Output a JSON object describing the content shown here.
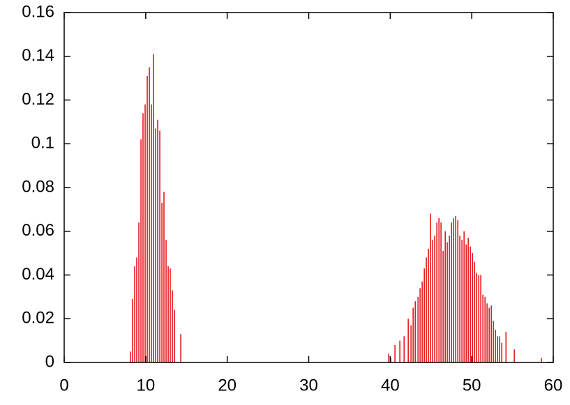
{
  "chart_data": {
    "type": "impulse",
    "color": "#e41a1c",
    "grid": false,
    "xlim": [
      0,
      60
    ],
    "xticks": [
      0,
      10,
      20,
      30,
      40,
      50,
      60
    ],
    "ylim": [
      0,
      0.16
    ],
    "yticks": [
      0,
      0.02,
      0.04,
      0.06,
      0.08,
      0.1,
      0.12,
      0.14,
      0.16
    ],
    "x": [
      8.13,
      8.39,
      8.65,
      8.9,
      9.16,
      9.42,
      9.67,
      9.93,
      10.19,
      10.45,
      10.7,
      10.96,
      11.22,
      11.47,
      11.73,
      11.99,
      12.24,
      12.5,
      12.76,
      13.01,
      13.27,
      13.53,
      14.3,
      39.81,
      40.07,
      40.58,
      41.18,
      41.7,
      42.21,
      42.55,
      42.81,
      43.07,
      43.41,
      43.66,
      43.92,
      44.18,
      44.43,
      44.69,
      44.95,
      45.21,
      45.46,
      45.72,
      45.98,
      46.23,
      46.49,
      46.75,
      47.0,
      47.26,
      47.52,
      47.77,
      48.03,
      48.29,
      48.54,
      48.8,
      49.06,
      49.32,
      49.57,
      49.83,
      50.09,
      50.34,
      50.6,
      50.86,
      51.11,
      51.37,
      51.63,
      51.88,
      52.14,
      52.4,
      52.65,
      52.91,
      53.17,
      53.42,
      53.68,
      54.2,
      55.22,
      58.56
    ],
    "values": [
      0.005,
      0.029,
      0.044,
      0.048,
      0.064,
      0.102,
      0.114,
      0.118,
      0.131,
      0.135,
      0.118,
      0.141,
      0.107,
      0.111,
      0.106,
      0.073,
      0.078,
      0.056,
      0.044,
      0.043,
      0.033,
      0.024,
      0.013,
      0.004,
      0.002,
      0.008,
      0.01,
      0.012,
      0.02,
      0.017,
      0.025,
      0.028,
      0.03,
      0.034,
      0.037,
      0.043,
      0.048,
      0.052,
      0.068,
      0.056,
      0.058,
      0.064,
      0.066,
      0.064,
      0.051,
      0.06,
      0.055,
      0.058,
      0.064,
      0.066,
      0.067,
      0.065,
      0.058,
      0.056,
      0.06,
      0.054,
      0.057,
      0.053,
      0.05,
      0.046,
      0.041,
      0.04,
      0.04,
      0.031,
      0.03,
      0.027,
      0.025,
      0.026,
      0.019,
      0.015,
      0.012,
      0.012,
      0.009,
      0.014,
      0.006,
      0.002
    ]
  }
}
